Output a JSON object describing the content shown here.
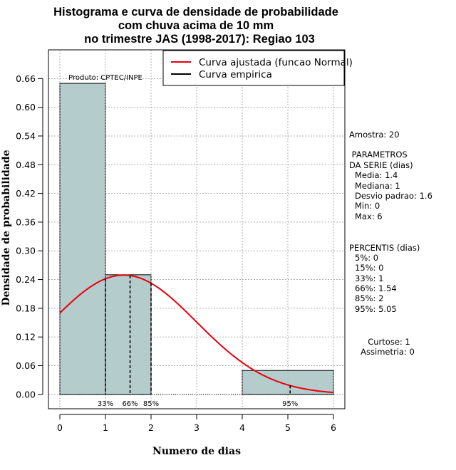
{
  "colors": {
    "bar_fill": "#b5cccc",
    "bar_stroke": "#000000",
    "curve": "#e8000b",
    "grid": "#b0b0b0"
  },
  "chart_data": {
    "type": "bar",
    "title": [
      "Histograma e curva de densidade de probabilidade",
      "com chuva acima de 10 mm",
      "no trimestre JAS (1998-2017): Regiao 103"
    ],
    "xlabel": "Numero de dias",
    "ylabel": "Densidade de probabilidade",
    "xlim": [
      -0.25,
      6.25
    ],
    "ylim": [
      -0.03,
      0.72
    ],
    "x_ticks": [
      0,
      1,
      2,
      3,
      4,
      5,
      6
    ],
    "y_ticks": [
      0.0,
      0.06,
      0.12,
      0.18,
      0.24,
      0.3,
      0.36,
      0.42,
      0.48,
      0.54,
      0.6,
      0.66
    ],
    "y_tick_labels": [
      "0.00",
      "0.06",
      "0.12",
      "0.18",
      "0.24",
      "0.30",
      "0.36",
      "0.42",
      "0.48",
      "0.54",
      "0.60",
      "0.66"
    ],
    "grid": true,
    "histogram": [
      {
        "x0": 0,
        "x1": 1,
        "density": 0.65
      },
      {
        "x0": 1,
        "x1": 2,
        "density": 0.25
      },
      {
        "x0": 2,
        "x1": 3,
        "density": 0.0
      },
      {
        "x0": 3,
        "x1": 4,
        "density": 0.0
      },
      {
        "x0": 4,
        "x1": 6,
        "density": 0.05
      }
    ],
    "fitted_normal": {
      "mean": 1.4,
      "sd": 1.6,
      "x_range": [
        0,
        6
      ]
    },
    "percentile_markers": [
      {
        "label": "33%",
        "x": 1
      },
      {
        "label": "66%",
        "x": 1.54
      },
      {
        "label": "85%",
        "x": 2
      },
      {
        "label": "95%",
        "x": 5.05
      }
    ],
    "product_label": "Produto: CPTEC/INPE",
    "legend": {
      "position": "top-right",
      "entries": [
        {
          "label": "Curva ajustada (funcao Normal)",
          "color": "#e8000b"
        },
        {
          "label": "Curva empirica",
          "color": "#000000"
        }
      ]
    }
  },
  "side_panel": {
    "sample": "Amostra: 20",
    "params_header": [
      " PARAMETROS",
      "DA SERIE (dias)"
    ],
    "params": [
      "Media: 1.4",
      "Mediana: 1",
      "Desvio padrao: 1.6",
      "Min: 0",
      "Max: 6"
    ],
    "percentiles_header": "PERCENTIS (dias)",
    "percentiles": [
      "5%: 0",
      "15%: 0",
      "33%: 1",
      "66%: 1.54",
      "85%: 2",
      "95%: 5.05"
    ],
    "shape": [
      "Curtose: 1",
      "Assimetria: 0"
    ]
  }
}
